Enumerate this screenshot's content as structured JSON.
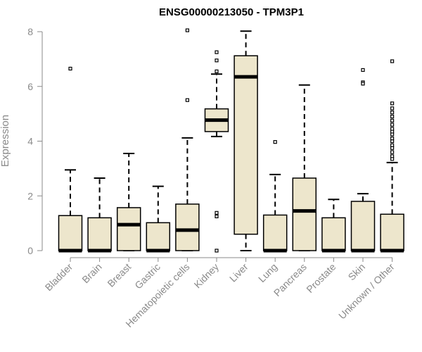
{
  "chart_data": {
    "type": "box",
    "title": "ENSG00000213050 - TPM3P1",
    "xlabel": "",
    "ylabel": "Expression",
    "ylim": [
      0,
      8
    ],
    "yticks": [
      0,
      2,
      4,
      6,
      8
    ],
    "grid": false,
    "legend": "none",
    "box_fill": "#ede6cc",
    "box_stroke": "#000000",
    "axis_color": "#8a8a8a",
    "categories": [
      "Bladder",
      "Brain",
      "Breast",
      "Gastric",
      "Hematopoietic cells",
      "Kidney",
      "Liver",
      "Lung",
      "Pancreas",
      "Prostate",
      "Skin",
      "Unknown / Other"
    ],
    "boxes": [
      {
        "category": "Bladder",
        "whisker_low": 0,
        "q1": 0,
        "median": 0,
        "q3": 1.28,
        "whisker_high": 2.95,
        "outliers": [
          6.65
        ]
      },
      {
        "category": "Brain",
        "whisker_low": 0,
        "q1": 0,
        "median": 0,
        "q3": 1.2,
        "whisker_high": 2.65,
        "outliers": []
      },
      {
        "category": "Breast",
        "whisker_low": 0,
        "q1": 0,
        "median": 0.95,
        "q3": 1.57,
        "whisker_high": 3.55,
        "outliers": []
      },
      {
        "category": "Gastric",
        "whisker_low": 0,
        "q1": 0,
        "median": 0,
        "q3": 1.02,
        "whisker_high": 2.35,
        "outliers": []
      },
      {
        "category": "Hematopoietic cells",
        "whisker_low": 0,
        "q1": 0,
        "median": 0.75,
        "q3": 1.7,
        "whisker_high": 4.12,
        "outliers": [
          5.5,
          8.05
        ]
      },
      {
        "category": "Kidney",
        "whisker_low": 4.17,
        "q1": 4.35,
        "median": 4.77,
        "q3": 5.18,
        "whisker_high": 6.45,
        "outliers": [
          6.55,
          6.95,
          7.25,
          1.25,
          1.38,
          0
        ]
      },
      {
        "category": "Liver",
        "whisker_low": 0,
        "q1": 0.6,
        "median": 6.35,
        "q3": 7.12,
        "whisker_high": 8.02,
        "outliers": []
      },
      {
        "category": "Lung",
        "whisker_low": 0,
        "q1": 0,
        "median": 0,
        "q3": 1.3,
        "whisker_high": 2.78,
        "outliers": [
          3.97
        ]
      },
      {
        "category": "Pancreas",
        "whisker_low": 0,
        "q1": 0,
        "median": 1.45,
        "q3": 2.65,
        "whisker_high": 6.05,
        "outliers": []
      },
      {
        "category": "Prostate",
        "whisker_low": 0,
        "q1": 0,
        "median": 0,
        "q3": 1.2,
        "whisker_high": 1.87,
        "outliers": []
      },
      {
        "category": "Skin",
        "whisker_low": 0,
        "q1": 0,
        "median": 0,
        "q3": 1.8,
        "whisker_high": 2.08,
        "outliers": [
          6.6,
          6.15,
          6.1
        ]
      },
      {
        "category": "Unknown / Other",
        "whisker_low": 0,
        "q1": 0,
        "median": 0,
        "q3": 1.33,
        "whisker_high": 3.22,
        "outliers": [
          3.35,
          3.45,
          3.6,
          3.75,
          3.85,
          4.0,
          4.1,
          4.25,
          4.35,
          4.45,
          4.6,
          4.75,
          4.9,
          5.05,
          5.2,
          5.38,
          6.92
        ]
      }
    ]
  }
}
